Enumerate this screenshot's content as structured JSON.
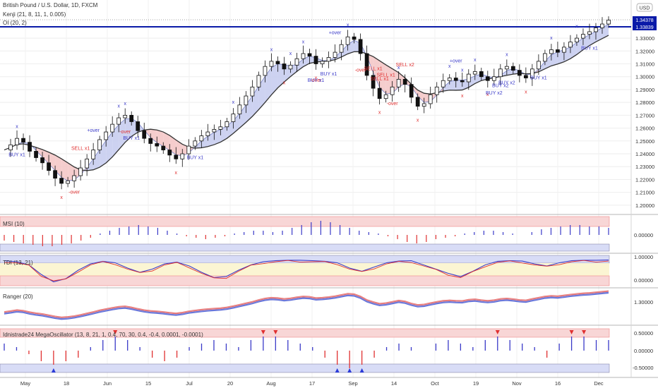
{
  "header": {
    "title": "British Pound / U.S. Dollar, 1D, FXCM",
    "indicator_kenji": "Kenji (21, 8, 11, 1, 0.005)",
    "indicator_oi": "OI (20, 2)",
    "currency_badge": "USD"
  },
  "colors": {
    "up_candle": "#ffffff",
    "down_candle": "#111111",
    "ribbon_fill": "#c8cdef",
    "ribbon_fill_bear": "#f4c8c8",
    "level_line": "#0a1aa8",
    "price_tag_bg": "#0a1aa8",
    "buy_text": "#3a3ac8",
    "sell_text": "#e03030",
    "over_text": "#e03030",
    "over_text_blue": "#3a3ac8",
    "marker_x": "#3a3ac8",
    "marker_x_red": "#e03030",
    "band_red": "#f8d6d6",
    "band_blue": "#d8dcf6",
    "band_yellow": "#fbf5d3",
    "hist_blue": "#3a3ac8",
    "hist_red": "#e03030",
    "ranger_red": "#e57373",
    "ranger_blue": "#5c6bd6"
  },
  "price_pane": {
    "price_labels": [
      "1.33000",
      "1.32000",
      "1.31000",
      "1.30000",
      "1.29000",
      "1.28000",
      "1.27000",
      "1.26000",
      "1.25000",
      "1.24000",
      "1.23000",
      "1.22000",
      "1.21000",
      "1.20000"
    ],
    "current_price_tag": "1.34378",
    "level_tag": "1.33839",
    "annotations": [
      {
        "text": "+over",
        "kind": "over_blue"
      },
      {
        "text": "+over",
        "kind": "over_blue"
      },
      {
        "text": "+over",
        "kind": "over_blue"
      },
      {
        "text": "-over",
        "kind": "over"
      },
      {
        "text": "-over",
        "kind": "over"
      },
      {
        "text": "-over",
        "kind": "over"
      },
      {
        "text": "-over",
        "kind": "over"
      },
      {
        "text": "-over",
        "kind": "over"
      },
      {
        "text": "BUY x1",
        "kind": "buy"
      },
      {
        "text": "BUY x1",
        "kind": "buy"
      },
      {
        "text": "BUY x1",
        "kind": "buy"
      },
      {
        "text": "BUY x1",
        "kind": "buy"
      },
      {
        "text": "BUY x1",
        "kind": "buy"
      },
      {
        "text": "BUY x1",
        "kind": "buy"
      },
      {
        "text": "BUY x1",
        "kind": "buy"
      },
      {
        "text": "BUY x2",
        "kind": "buy"
      },
      {
        "text": "BUY x2",
        "kind": "buy"
      },
      {
        "text": "BUY x2",
        "kind": "buy"
      },
      {
        "text": "SELL x1",
        "kind": "sell"
      },
      {
        "text": "SELL x1",
        "kind": "sell"
      },
      {
        "text": "SELL x1",
        "kind": "sell"
      },
      {
        "text": "SELL x2",
        "kind": "sell"
      },
      {
        "text": "SELL x1",
        "kind": "sell"
      }
    ]
  },
  "msi_pane": {
    "title": "MSI (10)",
    "labels": [
      "0.00000"
    ]
  },
  "tdi_pane": {
    "title": "TDI (13, 21)",
    "labels": [
      "1.00000",
      "0.00000"
    ]
  },
  "ranger_pane": {
    "title": "Ranger (20)",
    "labels": [
      "1.30000"
    ]
  },
  "mega_pane": {
    "title": "Idnistrade24 MegaOscillator (13, 8, 21, 1, 0.4, 70, 30, 0.4, -0.4, 0.0001, -0.0001)",
    "labels": [
      "0.50000",
      "0.00000",
      "-0.50000"
    ]
  },
  "x_axis": {
    "labels": [
      "May",
      "18",
      "Jun",
      "15",
      "Jul",
      "20",
      "Aug",
      "17",
      "Sep",
      "14",
      "Oct",
      "19",
      "Nov",
      "16",
      "Dec"
    ]
  },
  "chart_data": {
    "type": "candlestick",
    "title": "British Pound / U.S. Dollar, 1D, FXCM",
    "ylim": [
      1.195,
      1.352
    ],
    "level_line": 1.33839,
    "last_price": 1.34378,
    "price_path": [
      1.243,
      1.247,
      1.252,
      1.249,
      1.242,
      1.237,
      1.233,
      1.227,
      1.221,
      1.217,
      1.219,
      1.223,
      1.229,
      1.236,
      1.243,
      1.251,
      1.257,
      1.263,
      1.268,
      1.27,
      1.265,
      1.258,
      1.252,
      1.248,
      1.246,
      1.243,
      1.239,
      1.236,
      1.24,
      1.246,
      1.25,
      1.254,
      1.257,
      1.259,
      1.261,
      1.265,
      1.271,
      1.278,
      1.285,
      1.292,
      1.301,
      1.308,
      1.312,
      1.31,
      1.306,
      1.309,
      1.314,
      1.318,
      1.316,
      1.31,
      1.312,
      1.315,
      1.319,
      1.325,
      1.331,
      1.329,
      1.318,
      1.301,
      1.291,
      1.283,
      1.286,
      1.292,
      1.298,
      1.294,
      1.284,
      1.277,
      1.279,
      1.286,
      1.292,
      1.297,
      1.299,
      1.297,
      1.296,
      1.302,
      1.304,
      1.3,
      1.297,
      1.3,
      1.306,
      1.308,
      1.305,
      1.301,
      1.299,
      1.306,
      1.312,
      1.318,
      1.321,
      1.319,
      1.323,
      1.327,
      1.33,
      1.333,
      1.335,
      1.338,
      1.341,
      1.344
    ],
    "oscillators": {
      "msi": [
        -0.4,
        -0.5,
        -0.6,
        -0.7,
        -0.8,
        -0.8,
        -0.7,
        -0.6,
        -0.4,
        -0.2,
        0.1,
        0.3,
        0.5,
        0.6,
        0.7,
        0.6,
        0.5,
        0.3,
        0.1,
        -0.1,
        -0.2,
        -0.3,
        -0.2,
        -0.1,
        0.1,
        0.2,
        0.3,
        0.3,
        0.2,
        0.3,
        0.5,
        0.7,
        0.9,
        1.0,
        0.9,
        0.7,
        0.5,
        0.3,
        0.2,
        0.1,
        -0.1,
        -0.3,
        -0.5,
        -0.6,
        -0.5,
        -0.3,
        -0.2,
        -0.1,
        0.1,
        0.2,
        0.3,
        0.3,
        0.2,
        0.1,
        0.0,
        0.2,
        0.4,
        0.5,
        0.6,
        0.7,
        0.7,
        0.6,
        0.6,
        0.5
      ],
      "tdi": [
        0.95,
        0.9,
        0.75,
        0.3,
        -0.05,
        0.1,
        0.5,
        0.8,
        0.92,
        0.85,
        0.6,
        0.4,
        0.55,
        0.8,
        0.88,
        0.7,
        0.4,
        0.15,
        0.2,
        0.5,
        0.75,
        0.9,
        0.95,
        0.97,
        0.97,
        0.95,
        0.92,
        0.85,
        0.6,
        0.45,
        0.65,
        0.85,
        0.93,
        0.95,
        0.75,
        0.55,
        0.35,
        0.2,
        0.45,
        0.75,
        0.92,
        0.95,
        0.93,
        0.8,
        0.7,
        0.85,
        0.95,
        0.97,
        0.97,
        0.98
      ],
      "mega": [
        0.2,
        0.1,
        -0.1,
        -0.3,
        -0.4,
        -0.3,
        -0.2,
        0.1,
        0.3,
        0.4,
        0.3,
        0.1,
        -0.2,
        -0.3,
        -0.2,
        0.1,
        0.2,
        0.3,
        0.2,
        0.1,
        0.3,
        0.4,
        0.4,
        0.3,
        0.2,
        0.1,
        -0.2,
        -0.4,
        -0.5,
        -0.4,
        -0.2,
        0.1,
        0.2,
        0.1,
        0.0,
        0.2,
        0.3,
        0.2,
        0.1,
        0.3,
        0.4,
        0.3,
        0.2,
        0.1,
        -0.2,
        0.2,
        0.4,
        0.4,
        0.3,
        0.3
      ]
    }
  }
}
